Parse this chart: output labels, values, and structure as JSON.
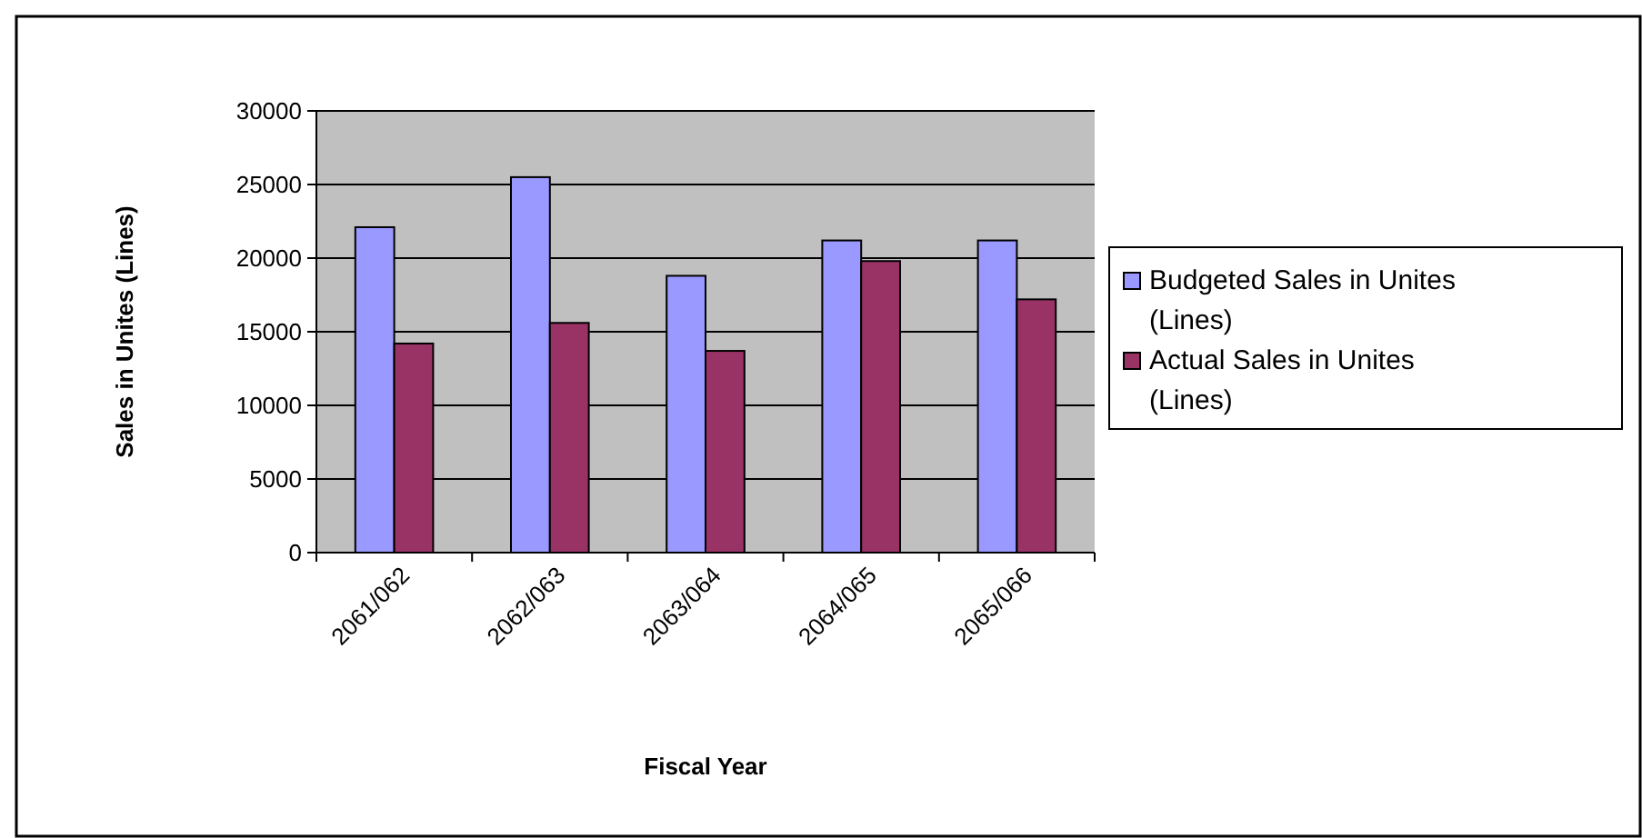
{
  "chart_data": {
    "type": "bar",
    "xlabel": "Fiscal Year",
    "ylabel": "Sales in Unites (Lines)",
    "categories": [
      "2061/062",
      "2062/063",
      "2063/064",
      "2064/065",
      "2065/066"
    ],
    "series": [
      {
        "name": "Budgeted Sales in Unites (Lines)",
        "color": "#9999ff",
        "values": [
          22100,
          25500,
          18800,
          21200,
          21200
        ]
      },
      {
        "name": "Actual Sales in Unites (Lines)",
        "color": "#993366",
        "values": [
          14200,
          15600,
          13700,
          19800,
          17200
        ]
      }
    ],
    "ylim": [
      0,
      30000
    ],
    "yticks": [
      0,
      5000,
      10000,
      15000,
      20000,
      25000,
      30000
    ],
    "grid": "y",
    "legend": "right"
  }
}
